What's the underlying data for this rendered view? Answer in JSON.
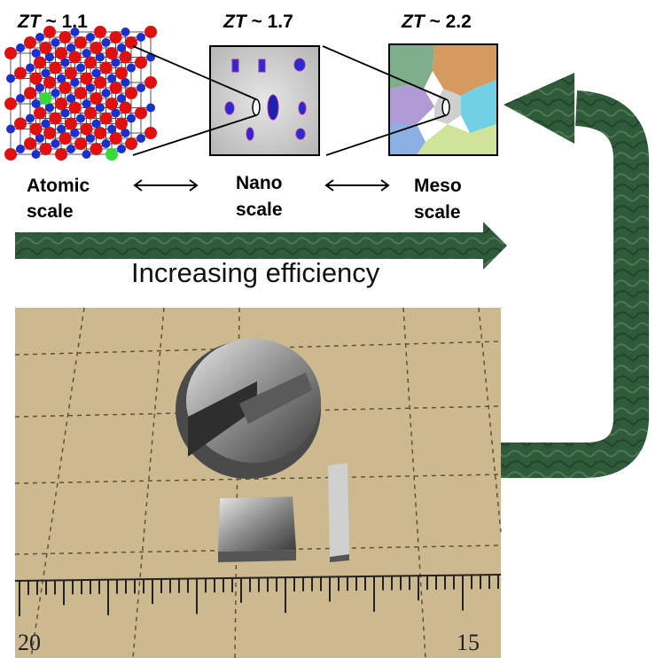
{
  "zt_labels": [
    {
      "prefix": "ZT",
      "value": "~ 1.1"
    },
    {
      "prefix": "ZT",
      "value": "~ 1.7"
    },
    {
      "prefix": "ZT",
      "value": "~ 2.2"
    }
  ],
  "scales": [
    {
      "line1": "Atomic",
      "line2": "scale"
    },
    {
      "line1": "Nano",
      "line2": "scale"
    },
    {
      "line1": "Meso",
      "line2": "scale"
    }
  ],
  "efficiency_label": "Increasing efficiency",
  "photo": {
    "ruler_left": "20",
    "ruler_right": "15"
  },
  "colors": {
    "arrow_green": "#2f5b3b",
    "atom_red": "#e01010",
    "atom_blue": "#1a2fd0",
    "atom_green": "#33dd33",
    "photo_bg": "#cdb98f"
  }
}
